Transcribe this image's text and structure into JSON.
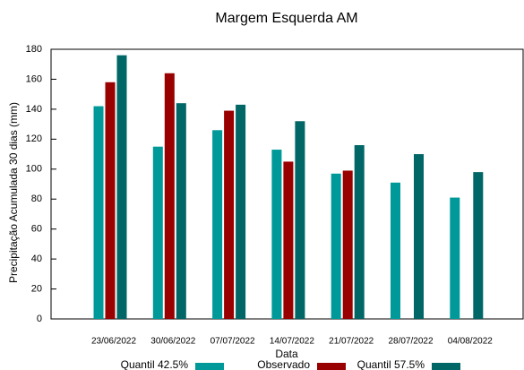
{
  "chart_data": {
    "type": "bar",
    "title": "Margem Esquerda AM",
    "x_label": "Data",
    "y_label": "Precipitação Acumulada 30 dias (mm)",
    "categories": [
      "23/06/2022",
      "30/06/2022",
      "07/07/2022",
      "14/07/2022",
      "21/07/2022",
      "28/07/2022",
      "04/08/2022"
    ],
    "series": [
      {
        "name": "Quantil 42.5%",
        "color": "#009999",
        "values": [
          142,
          115,
          126,
          113,
          97,
          91,
          81
        ]
      },
      {
        "name": "Observado",
        "color": "#990000",
        "values": [
          158,
          164,
          139,
          105,
          99,
          null,
          null
        ]
      },
      {
        "name": "Quantil 57.5%",
        "color": "#006666",
        "values": [
          176,
          144,
          143,
          132,
          116,
          110,
          98
        ]
      }
    ],
    "ylim": [
      0,
      180
    ],
    "yticks": [
      0,
      20,
      40,
      60,
      80,
      100,
      120,
      140,
      160,
      180
    ],
    "grid": false
  }
}
